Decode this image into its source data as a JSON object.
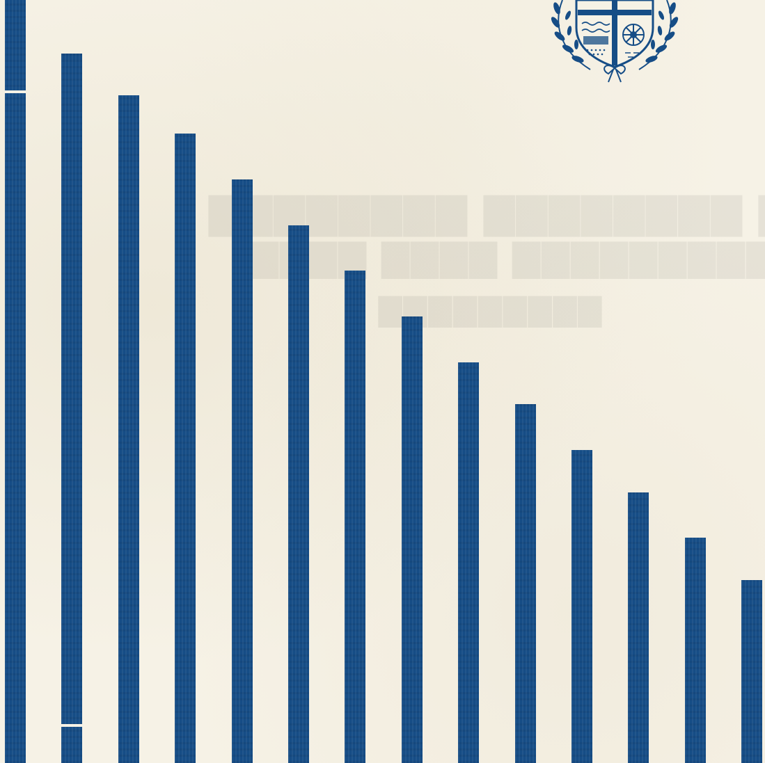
{
  "cover": {
    "bar_color": "#164d86",
    "paper_color": "#f6f2e6",
    "bar_heights": [
      1.0,
      0.93,
      0.875,
      0.825,
      0.765,
      0.705,
      0.645,
      0.585,
      0.525,
      0.47,
      0.41,
      0.355,
      0.295,
      0.24
    ],
    "emblem": "crest-with-laurel-wreath-icon"
  }
}
